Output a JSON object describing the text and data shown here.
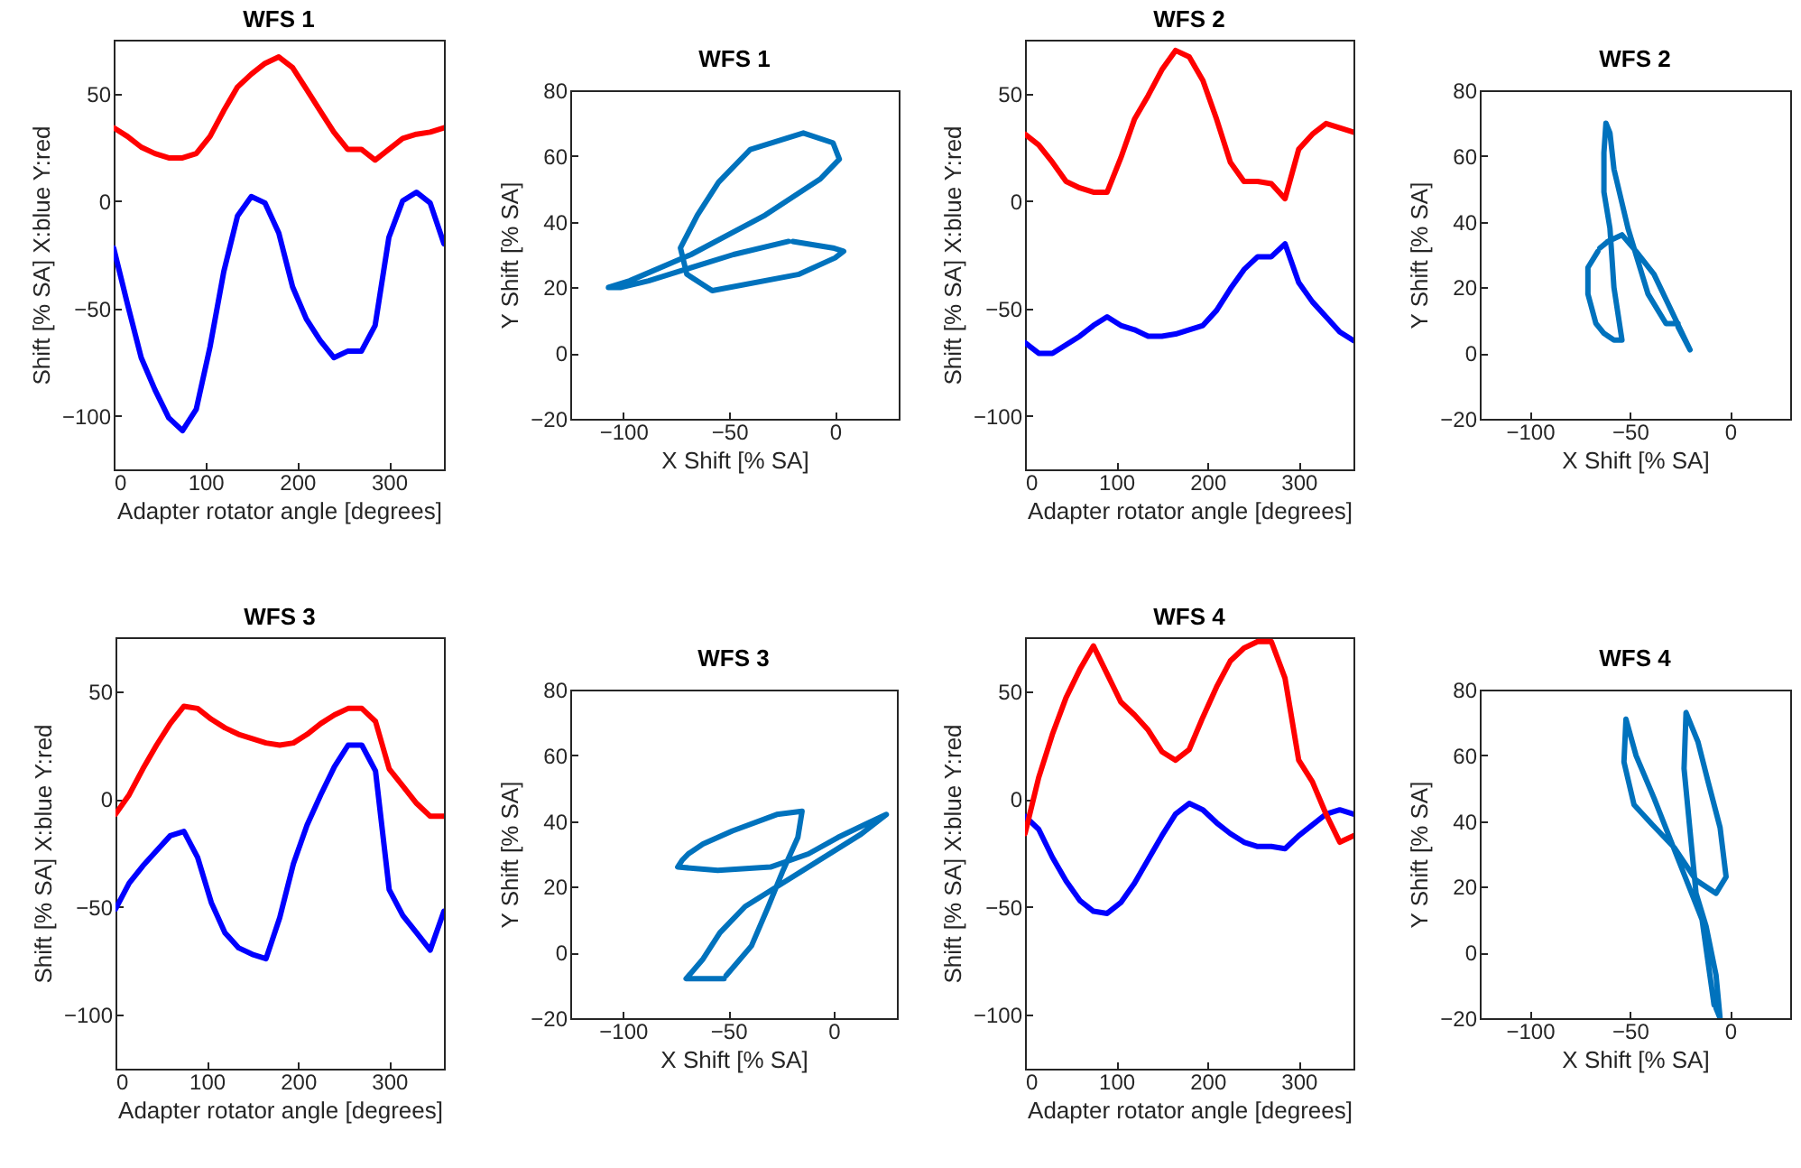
{
  "chart_data": [
    {
      "type": "line",
      "title": "WFS 1",
      "xlabel": "Adapter rotator angle [degrees]",
      "ylabel": "Shift [% SA] X:blue Y:red",
      "x": [
        0,
        15,
        30,
        45,
        60,
        75,
        90,
        105,
        120,
        135,
        150,
        165,
        180,
        195,
        210,
        225,
        240,
        255,
        270,
        285,
        300,
        315,
        330,
        345,
        360
      ],
      "xlim": [
        0,
        360
      ],
      "ylim": [
        -125,
        75
      ],
      "xticks": [
        0,
        100,
        200,
        300
      ],
      "yticks": [
        -100,
        -50,
        0,
        50
      ],
      "series": [
        {
          "color": "#0000ff",
          "values": [
            -22,
            -48,
            -73,
            -88,
            -101,
            -107,
            -97,
            -68,
            -33,
            -7,
            2,
            -1,
            -15,
            -40,
            -55,
            -65,
            -73,
            -70,
            -70,
            -58,
            -17,
            0,
            4,
            -1,
            -20
          ]
        },
        {
          "color": "#ff0000",
          "values": [
            34,
            30,
            25,
            22,
            20,
            20,
            22,
            30,
            42,
            53,
            59,
            64,
            67,
            62,
            52,
            42,
            32,
            24,
            24,
            19,
            24,
            29,
            31,
            32,
            34
          ]
        }
      ]
    },
    {
      "type": "line",
      "title": "WFS 1",
      "xlabel": "X Shift [% SA]",
      "ylabel": "Y Shift [% SA]",
      "xlim": [
        -125,
        30
      ],
      "ylim": [
        -20,
        80
      ],
      "xticks": [
        -100,
        -50,
        0
      ],
      "yticks": [
        -20,
        0,
        20,
        40,
        60,
        80
      ],
      "series": [
        {
          "color": "#0072bd",
          "x": [
            -22,
            -48,
            -73,
            -88,
            -101,
            -107,
            -97,
            -68,
            -33,
            -7,
            2,
            -1,
            -15,
            -40,
            -55,
            -65,
            -73,
            -70,
            -70,
            -58,
            -17,
            0,
            4,
            -1,
            -20
          ],
          "values": [
            34,
            30,
            25,
            22,
            20,
            20,
            22,
            30,
            42,
            53,
            59,
            64,
            67,
            62,
            52,
            42,
            32,
            24,
            24,
            19,
            24,
            29,
            31,
            32,
            34
          ]
        }
      ]
    },
    {
      "type": "line",
      "title": "WFS 2",
      "xlabel": "Adapter rotator angle [degrees]",
      "ylabel": "Shift [% SA] X:blue Y:red",
      "x": [
        0,
        15,
        30,
        45,
        60,
        75,
        90,
        105,
        120,
        135,
        150,
        165,
        180,
        195,
        210,
        225,
        240,
        255,
        270,
        285,
        300,
        315,
        330,
        345,
        360
      ],
      "xlim": [
        0,
        360
      ],
      "ylim": [
        -125,
        75
      ],
      "xticks": [
        0,
        100,
        200,
        300
      ],
      "yticks": [
        -100,
        -50,
        0,
        50
      ],
      "series": [
        {
          "color": "#0000ff",
          "values": [
            -66,
            -71,
            -71,
            -67,
            -63,
            -58,
            -54,
            -58,
            -60,
            -63,
            -63,
            -62,
            -60,
            -58,
            -51,
            -41,
            -32,
            -26,
            -26,
            -20,
            -38,
            -47,
            -54,
            -61,
            -65
          ]
        },
        {
          "color": "#ff0000",
          "values": [
            31,
            26,
            18,
            9,
            6,
            4,
            4,
            20,
            38,
            49,
            61,
            70,
            67,
            56,
            38,
            18,
            9,
            9,
            8,
            1,
            24,
            31,
            36,
            34,
            32
          ]
        }
      ]
    },
    {
      "type": "line",
      "title": "WFS 2",
      "xlabel": "X Shift [% SA]",
      "ylabel": "Y Shift [% SA]",
      "xlim": [
        -125,
        30
      ],
      "ylim": [
        -20,
        80
      ],
      "xticks": [
        -100,
        -50,
        0
      ],
      "yticks": [
        -20,
        0,
        20,
        40,
        60,
        80
      ],
      "series": [
        {
          "color": "#0072bd",
          "x": [
            -66,
            -71,
            -71,
            -67,
            -63,
            -58,
            -54,
            -58,
            -60,
            -63,
            -63,
            -62,
            -60,
            -58,
            -51,
            -41,
            -32,
            -26,
            -26,
            -20,
            -38,
            -47,
            -54,
            -61,
            -65
          ],
          "values": [
            31,
            26,
            18,
            9,
            6,
            4,
            4,
            20,
            38,
            49,
            61,
            70,
            67,
            56,
            38,
            18,
            9,
            9,
            8,
            1,
            24,
            31,
            36,
            34,
            32
          ]
        }
      ]
    },
    {
      "type": "line",
      "title": "WFS 3",
      "xlabel": "Adapter rotator angle [degrees]",
      "ylabel": "Shift [% SA] X:blue Y:red",
      "x": [
        0,
        15,
        30,
        45,
        60,
        75,
        90,
        105,
        120,
        135,
        150,
        165,
        180,
        195,
        210,
        225,
        240,
        255,
        270,
        285,
        300,
        315,
        330,
        345,
        360
      ],
      "xlim": [
        0,
        360
      ],
      "ylim": [
        -125,
        75
      ],
      "xticks": [
        0,
        100,
        200,
        300
      ],
      "yticks": [
        -100,
        -50,
        0,
        50
      ],
      "series": [
        {
          "color": "#0000ff",
          "values": [
            -51,
            -39,
            -31,
            -24,
            -17,
            -15,
            -27,
            -48,
            -62,
            -69,
            -72,
            -74,
            -55,
            -30,
            -12,
            2,
            15,
            25,
            25,
            13,
            -42,
            -54,
            -62,
            -70,
            -52
          ]
        },
        {
          "color": "#ff0000",
          "values": [
            -7,
            2,
            14,
            25,
            35,
            43,
            42,
            37,
            33,
            30,
            28,
            26,
            25,
            26,
            30,
            35,
            39,
            42,
            42,
            36,
            14,
            6,
            -2,
            -8,
            -8
          ]
        }
      ]
    },
    {
      "type": "line",
      "title": "WFS 3",
      "xlabel": "X Shift [% SA]",
      "ylabel": "Y Shift [% SA]",
      "xlim": [
        -125,
        30
      ],
      "ylim": [
        -20,
        80
      ],
      "xticks": [
        -100,
        -50,
        0
      ],
      "yticks": [
        -20,
        0,
        20,
        40,
        60,
        80
      ],
      "series": [
        {
          "color": "#0072bd",
          "x": [
            -51,
            -39,
            -31,
            -24,
            -17,
            -15,
            -27,
            -48,
            -62,
            -69,
            -72,
            -74,
            -55,
            -30,
            -12,
            2,
            15,
            25,
            25,
            13,
            -42,
            -54,
            -62,
            -70,
            -52
          ],
          "values": [
            -7,
            2,
            14,
            25,
            35,
            43,
            42,
            37,
            33,
            30,
            28,
            26,
            25,
            26,
            30,
            35,
            39,
            42,
            42,
            36,
            14,
            6,
            -2,
            -8,
            -8
          ]
        }
      ]
    },
    {
      "type": "line",
      "title": "WFS 4",
      "xlabel": "Adapter rotator angle [degrees]",
      "ylabel": "Shift [% SA] X:blue Y:red",
      "x": [
        0,
        15,
        30,
        45,
        60,
        75,
        90,
        105,
        120,
        135,
        150,
        165,
        180,
        195,
        210,
        225,
        240,
        255,
        270,
        285,
        300,
        315,
        330,
        345,
        360
      ],
      "xlim": [
        0,
        360
      ],
      "ylim": [
        -125,
        75
      ],
      "xticks": [
        0,
        100,
        200,
        300
      ],
      "yticks": [
        -100,
        -50,
        0,
        50
      ],
      "series": [
        {
          "color": "#0000ff",
          "values": [
            -8,
            -14,
            -27,
            -38,
            -47,
            -52,
            -53,
            -48,
            -39,
            -28,
            -17,
            -7,
            -2,
            -5,
            -11,
            -16,
            -20,
            -22,
            -22,
            -23,
            -17,
            -12,
            -7,
            -5,
            -7
          ]
        },
        {
          "color": "#ff0000",
          "values": [
            -16,
            10,
            30,
            47,
            60,
            71,
            58,
            45,
            39,
            32,
            22,
            18,
            23,
            38,
            52,
            64,
            70,
            73,
            73,
            56,
            18,
            8,
            -7,
            -20,
            -17
          ]
        }
      ]
    },
    {
      "type": "line",
      "title": "WFS 4",
      "xlabel": "X Shift [% SA]",
      "ylabel": "Y Shift [% SA]",
      "xlim": [
        -125,
        30
      ],
      "ylim": [
        -20,
        80
      ],
      "xticks": [
        -100,
        -50,
        0
      ],
      "yticks": [
        -20,
        0,
        20,
        40,
        60,
        80
      ],
      "series": [
        {
          "color": "#0072bd",
          "x": [
            -8,
            -14,
            -27,
            -38,
            -47,
            -52,
            -53,
            -48,
            -39,
            -28,
            -17,
            -7,
            -2,
            -5,
            -11,
            -16,
            -20,
            -22,
            -22,
            -23,
            -17,
            -12,
            -7,
            -5,
            -7
          ],
          "values": [
            -16,
            10,
            30,
            47,
            60,
            71,
            58,
            45,
            39,
            32,
            22,
            18,
            23,
            38,
            52,
            64,
            70,
            73,
            73,
            56,
            18,
            8,
            -7,
            -20,
            -17
          ]
        }
      ]
    }
  ]
}
